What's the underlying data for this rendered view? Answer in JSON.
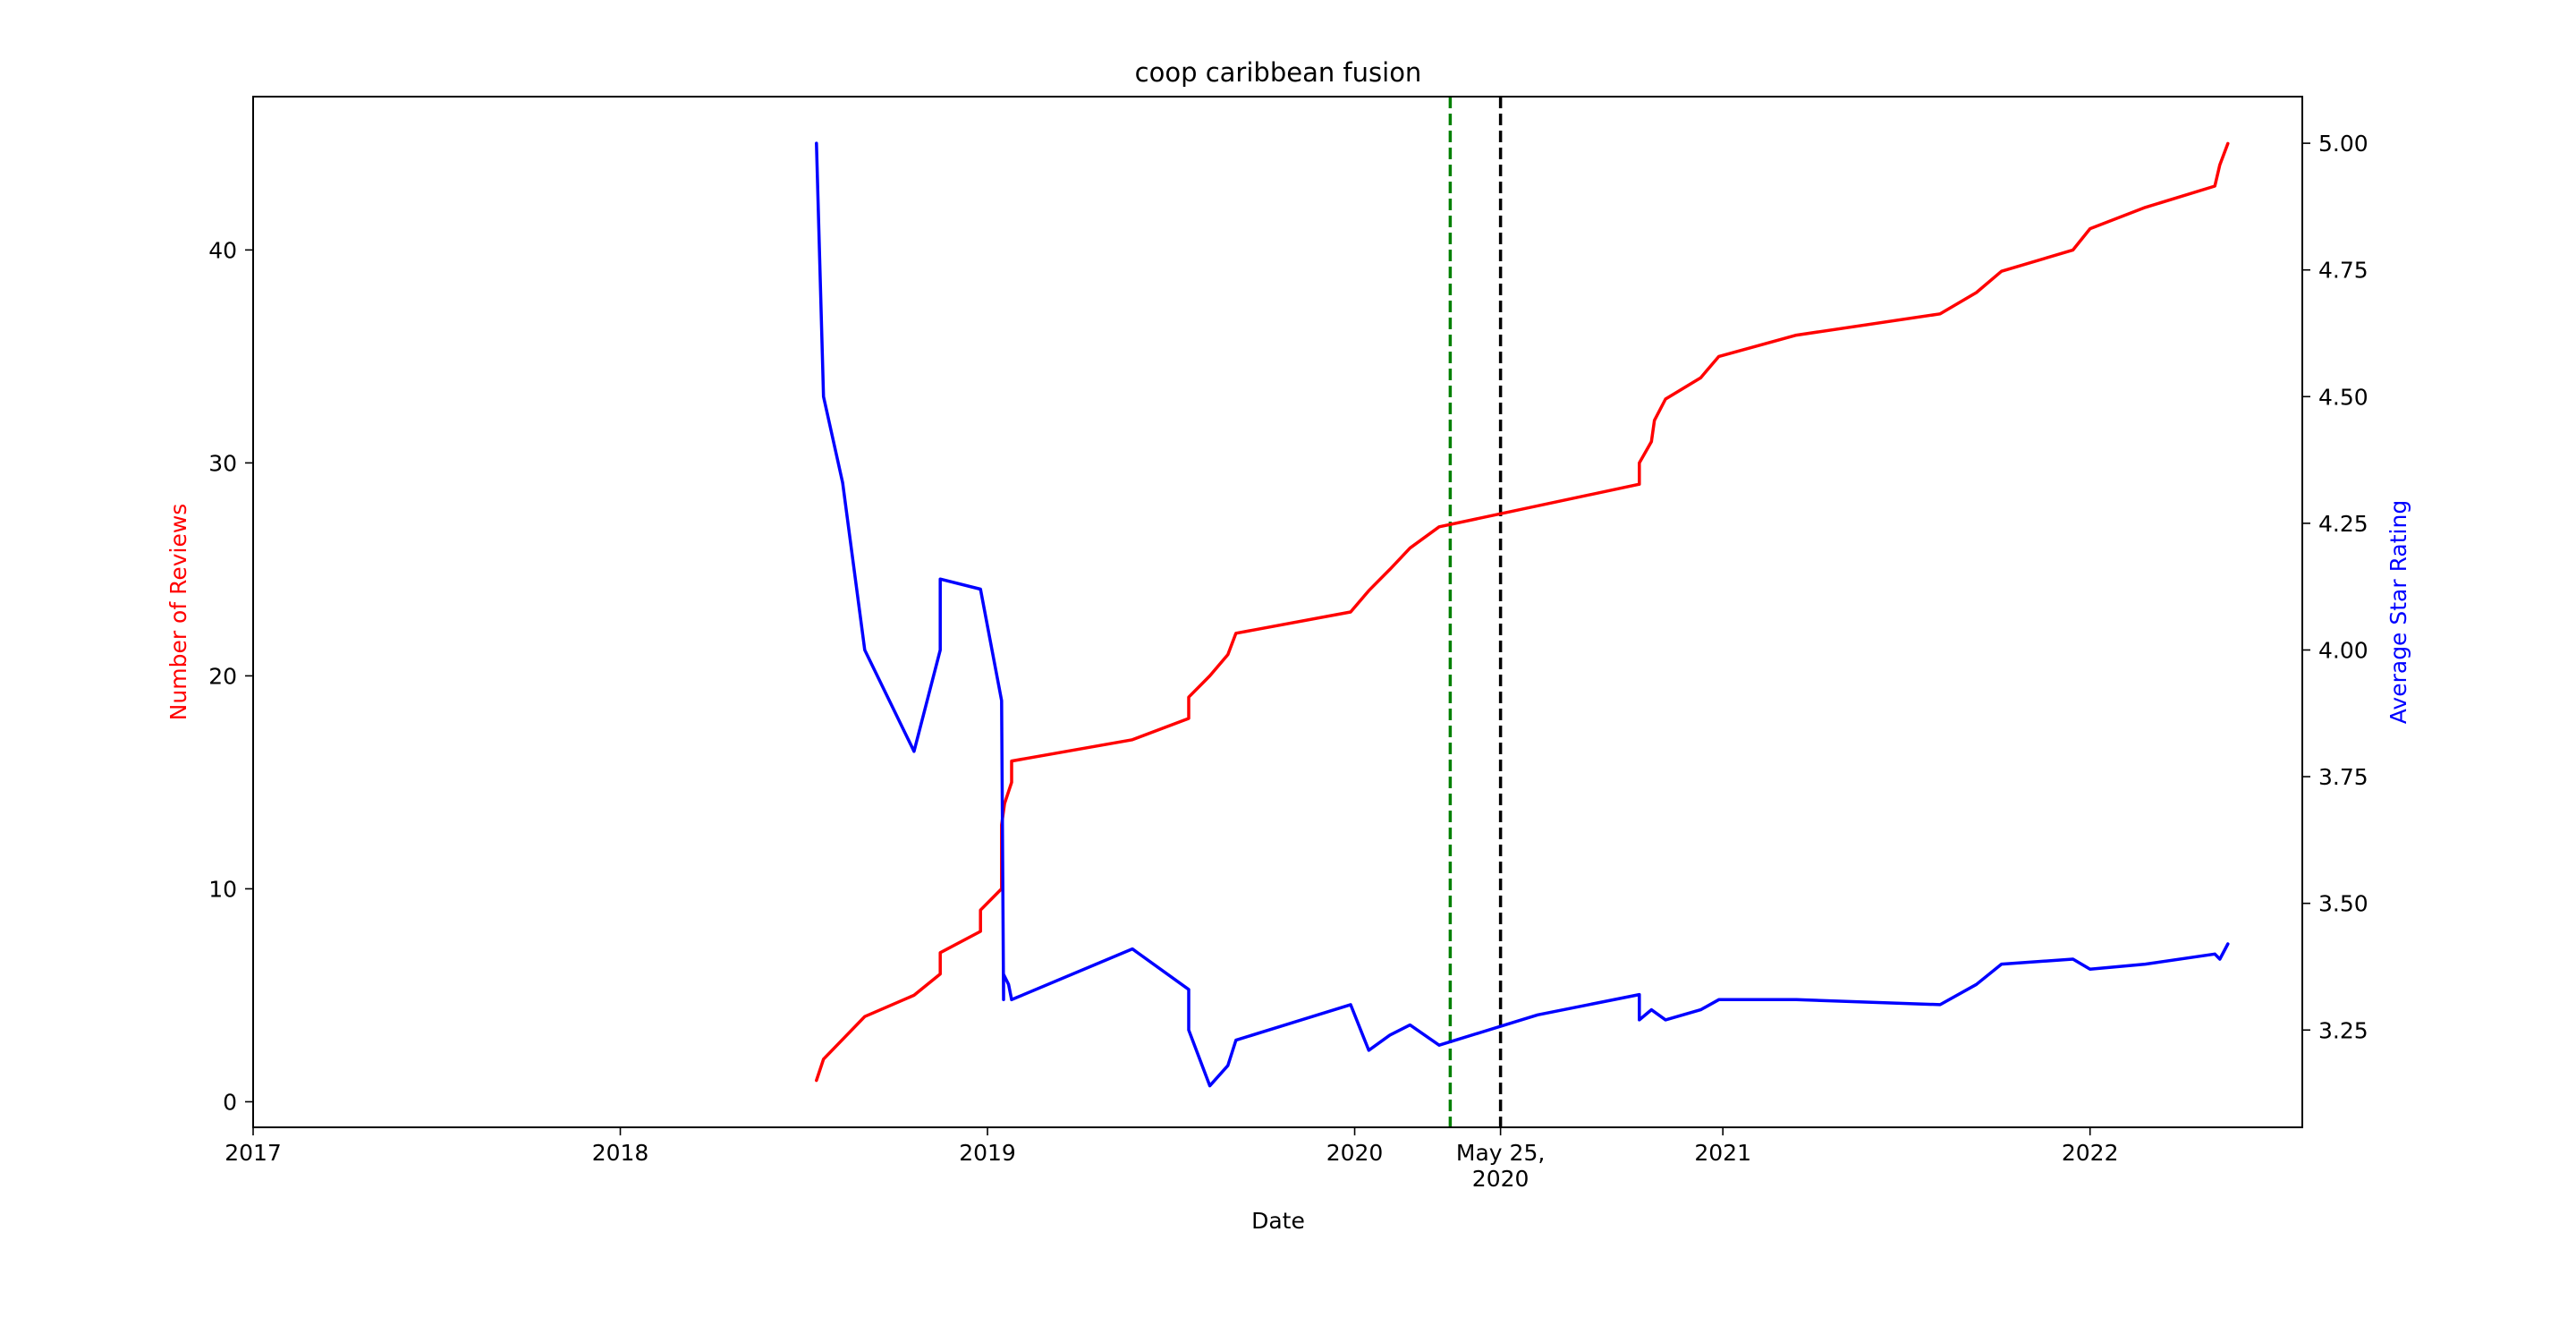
{
  "chart_data": {
    "type": "line",
    "title": "coop caribbean fusion",
    "xlabel": "Date",
    "ylabel_left": "Number of Reviews",
    "ylabel_right": "Average Star Rating",
    "xlim": [
      "2017-01-01",
      "2022-07-31"
    ],
    "ylim_left": [
      -1.2,
      47.2
    ],
    "ylim_right": [
      3.058,
      5.092
    ],
    "x_ticks": [
      {
        "date": "2017-01-01",
        "label": "2017"
      },
      {
        "date": "2018-01-01",
        "label": "2018"
      },
      {
        "date": "2019-01-01",
        "label": "2019"
      },
      {
        "date": "2020-01-01",
        "label": "2020"
      },
      {
        "date": "2020-05-25",
        "label": "May 25,",
        "label2": "2020"
      },
      {
        "date": "2021-01-01",
        "label": "2021"
      },
      {
        "date": "2022-01-01",
        "label": "2022"
      }
    ],
    "y_ticks_left": [
      0,
      10,
      20,
      30,
      40
    ],
    "y_ticks_right": [
      "3.25",
      "3.50",
      "3.75",
      "4.00",
      "4.25",
      "4.50",
      "4.75",
      "5.00"
    ],
    "colors": {
      "left_series": "#ff0000",
      "right_series": "#0000ff",
      "green_line": "#008000",
      "black_line": "#000000"
    },
    "vlines": [
      {
        "date": "2020-04-05",
        "color": "#008000",
        "style": "dashed"
      },
      {
        "date": "2020-05-25",
        "color": "#000000",
        "style": "dashed"
      }
    ],
    "series": [
      {
        "axis": "left",
        "color": "#ff0000",
        "points": [
          [
            "2018-07-15",
            1
          ],
          [
            "2018-07-22",
            2
          ],
          [
            "2018-09-01",
            4
          ],
          [
            "2018-10-20",
            5
          ],
          [
            "2018-11-15",
            6
          ],
          [
            "2018-11-15",
            7
          ],
          [
            "2018-12-25",
            8
          ],
          [
            "2018-12-25",
            9
          ],
          [
            "2019-01-15",
            10
          ],
          [
            "2019-01-15",
            13
          ],
          [
            "2019-01-18",
            14
          ],
          [
            "2019-01-25",
            15
          ],
          [
            "2019-01-25",
            16
          ],
          [
            "2019-05-25",
            17
          ],
          [
            "2019-07-20",
            18
          ],
          [
            "2019-07-20",
            19
          ],
          [
            "2019-08-10",
            20
          ],
          [
            "2019-08-28",
            21
          ],
          [
            "2019-09-05",
            22
          ],
          [
            "2019-12-28",
            23
          ],
          [
            "2020-01-15",
            24
          ],
          [
            "2020-02-05",
            25
          ],
          [
            "2020-02-25",
            26
          ],
          [
            "2020-03-25",
            27
          ],
          [
            "2020-10-10",
            29
          ],
          [
            "2020-10-10",
            30
          ],
          [
            "2020-10-22",
            31
          ],
          [
            "2020-10-25",
            32
          ],
          [
            "2020-11-05",
            33
          ],
          [
            "2020-12-10",
            34
          ],
          [
            "2020-12-28",
            35
          ],
          [
            "2021-03-15",
            36
          ],
          [
            "2021-08-05",
            37
          ],
          [
            "2021-09-10",
            38
          ],
          [
            "2021-10-05",
            39
          ],
          [
            "2021-12-15",
            40
          ],
          [
            "2022-01-01",
            41
          ],
          [
            "2022-02-25",
            42
          ],
          [
            "2022-05-05",
            43
          ],
          [
            "2022-05-10",
            44
          ],
          [
            "2022-05-18",
            45
          ]
        ]
      },
      {
        "axis": "right",
        "color": "#0000ff",
        "points": [
          [
            "2018-07-15",
            5.0
          ],
          [
            "2018-07-22",
            4.5
          ],
          [
            "2018-08-10",
            4.33
          ],
          [
            "2018-09-01",
            4.0
          ],
          [
            "2018-10-20",
            3.8
          ],
          [
            "2018-11-15",
            4.0
          ],
          [
            "2018-11-15",
            4.14
          ],
          [
            "2018-12-25",
            4.12
          ],
          [
            "2019-01-15",
            3.9
          ],
          [
            "2019-01-17",
            3.31
          ],
          [
            "2019-01-17",
            3.36
          ],
          [
            "2019-01-22",
            3.34
          ],
          [
            "2019-01-25",
            3.31
          ],
          [
            "2019-05-25",
            3.41
          ],
          [
            "2019-07-20",
            3.33
          ],
          [
            "2019-07-20",
            3.25
          ],
          [
            "2019-08-10",
            3.14
          ],
          [
            "2019-08-28",
            3.18
          ],
          [
            "2019-09-05",
            3.23
          ],
          [
            "2019-12-28",
            3.3
          ],
          [
            "2020-01-15",
            3.21
          ],
          [
            "2020-02-05",
            3.24
          ],
          [
            "2020-02-25",
            3.26
          ],
          [
            "2020-03-25",
            3.22
          ],
          [
            "2020-07-01",
            3.28
          ],
          [
            "2020-10-10",
            3.32
          ],
          [
            "2020-10-10",
            3.27
          ],
          [
            "2020-10-22",
            3.29
          ],
          [
            "2020-11-05",
            3.27
          ],
          [
            "2020-12-10",
            3.29
          ],
          [
            "2020-12-28",
            3.31
          ],
          [
            "2021-03-15",
            3.31
          ],
          [
            "2021-08-05",
            3.3
          ],
          [
            "2021-09-10",
            3.34
          ],
          [
            "2021-10-05",
            3.38
          ],
          [
            "2021-12-15",
            3.39
          ],
          [
            "2022-01-01",
            3.37
          ],
          [
            "2022-02-25",
            3.38
          ],
          [
            "2022-05-05",
            3.4
          ],
          [
            "2022-05-10",
            3.39
          ],
          [
            "2022-05-18",
            3.42
          ]
        ]
      }
    ]
  }
}
